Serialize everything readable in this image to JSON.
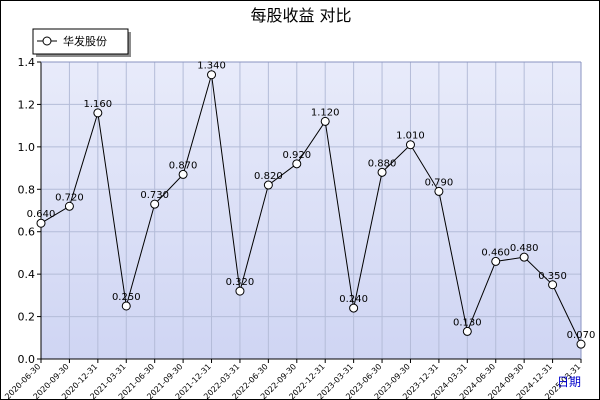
{
  "chart_data": {
    "type": "line",
    "title": "每股收益  对比",
    "xlabel": "日期",
    "ylabel": "",
    "ylim": [
      0,
      1.4
    ],
    "yticks": [
      "0.0",
      "0.2",
      "0.4",
      "0.6",
      "0.8",
      "1.0",
      "1.2",
      "1.4"
    ],
    "grid": true,
    "legend_position": "top-left",
    "categories": [
      "2020-06-30",
      "2020-09-30",
      "2020-12-31",
      "2021-03-31",
      "2021-06-30",
      "2021-09-30",
      "2021-12-31",
      "2022-03-31",
      "2022-06-30",
      "2022-09-30",
      "2022-12-31",
      "2023-03-31",
      "2023-06-30",
      "2023-09-30",
      "2023-12-31",
      "2024-03-31",
      "2024-06-30",
      "2024-09-30",
      "2024-12-31",
      "2025-03-31"
    ],
    "series": [
      {
        "name": "华发股份",
        "values": [
          0.64,
          0.72,
          1.16,
          0.25,
          0.73,
          0.87,
          1.34,
          0.32,
          0.82,
          0.92,
          1.12,
          0.24,
          0.88,
          1.01,
          0.79,
          0.13,
          0.46,
          0.48,
          0.35,
          0.07
        ],
        "labels": [
          "0.640",
          "0.720",
          "1.160",
          "0.250",
          "0.730",
          "0.870",
          "1.340",
          "0.320",
          "0.820",
          "0.920",
          "1.120",
          "0.240",
          "0.880",
          "1.010",
          "0.790",
          "0.130",
          "0.460",
          "0.480",
          "0.350",
          "0.070"
        ]
      }
    ],
    "colors": {
      "plot_bg_top": "#e8ebfa",
      "plot_bg_bottom": "#cfd5f3",
      "grid": "#b4bcd8",
      "line": "#000000",
      "marker_fill": "#ffffff"
    }
  }
}
